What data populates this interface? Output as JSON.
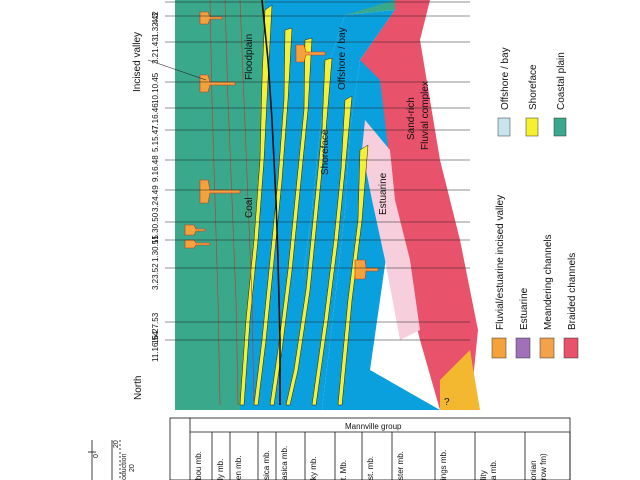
{
  "orientation_label": "North",
  "group_label": "Mannville group",
  "wells": [
    "11.16.54",
    "16.27.53",
    "3.23.52",
    "1.30.51",
    "15.30.50",
    "3.24.49",
    "9.16.48",
    "5.15.47",
    "7.16.46",
    "10.10.45",
    "3.21.43",
    "1.32.42",
    "4.3"
  ],
  "members": [
    "bou mb.",
    "ly mb.",
    "en mb.",
    "sica mb.",
    "asica mb.",
    "ky mb.",
    "t. Mb.",
    "st. mb.",
    "ster mb.",
    "ings mb.",
    "lity\na mb.",
    "onian\nrow fm)"
  ],
  "facies_labels": {
    "incised_valley": "Incised valley",
    "floodplain": "Floodplain",
    "offshore_bay": "Offshore / bay",
    "sand_rich": "Sand-rich",
    "fluvial_complex": "Fluvial complex",
    "shoreface": "Shoreface",
    "estuarine": "Estuarine",
    "coal": "Coal",
    "question": "?"
  },
  "legend_top": [
    {
      "label": "Offshore / bay",
      "color": "#c8e4ef"
    },
    {
      "label": "Shoreface",
      "color": "#f5f032"
    },
    {
      "label": "Coastal plain",
      "color": "#3aa88a"
    }
  ],
  "legend_bottom": [
    {
      "label": "Fluvial/estuarine incised valley",
      "color": "#f4a23c"
    },
    {
      "label": "Estuarine",
      "color": "#a070b8"
    },
    {
      "label": "Meandering channels",
      "color": "#f2a24a"
    },
    {
      "label": "Braided channels",
      "color": "#e8526a"
    }
  ],
  "scale": {
    "tick_zero": "0",
    "tick_a": "20",
    "tick_b": "20",
    "text": "oduction"
  },
  "colors": {
    "coastal_plain": "#3aa88a",
    "offshore": "#0aa0de",
    "shoreface": "#f5f032",
    "braided": "#e8526a",
    "estuarine_fill": "#f7cfdc",
    "incised_valley": "#f4a23c",
    "wells": "#222222"
  }
}
